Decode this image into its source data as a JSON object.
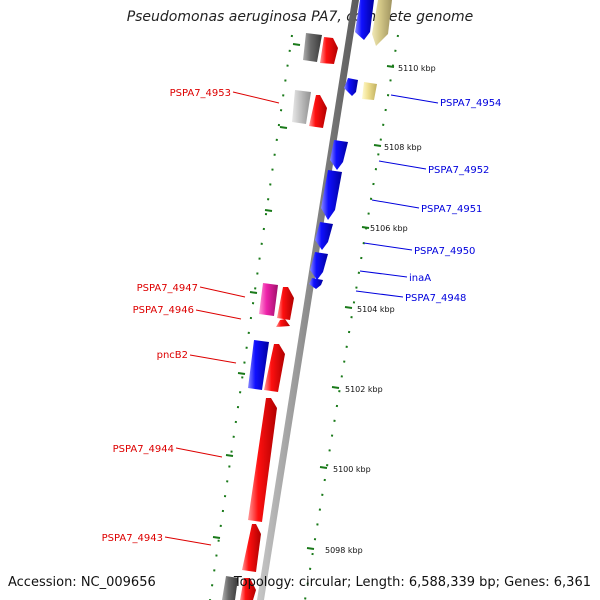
{
  "title": "Pseudomonas aeruginosa PA7, complete genome",
  "accession": "Accession: NC_009656",
  "summary": "Topology: circular; Length: 6,588,339 bp; Genes: 6,361",
  "colors": {
    "forward": "#ee0000",
    "reverse": "#0000ee",
    "backbone": "#888888",
    "tick": "#1a7a1a"
  },
  "ticks": [
    "5110 kbp",
    "5108 kbp",
    "5106 kbp",
    "5104 kbp",
    "5102 kbp",
    "5100 kbp",
    "5098 kbp"
  ],
  "labels_left": [
    "PSPA7_4953",
    "PSPA7_4947",
    "PSPA7_4946",
    "pncB2",
    "PSPA7_4944",
    "PSPA7_4943"
  ],
  "labels_right": [
    "PSPA7_4954",
    "PSPA7_4952",
    "PSPA7_4951",
    "PSPA7_4950",
    "inaA",
    "PSPA7_4948"
  ]
}
